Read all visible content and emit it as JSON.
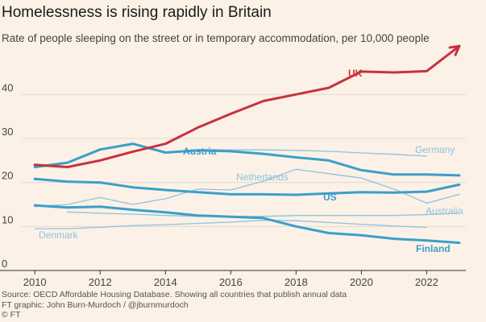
{
  "chart_data": {
    "type": "line",
    "title": "Homelessness is rising rapidly in Britain",
    "subtitle": "Rate of people sleeping on the street or in temporary accommodation, per 10,000 people",
    "xlabel": "",
    "ylabel": "",
    "xlim": [
      2009.6,
      2023.2
    ],
    "ylim": [
      0,
      45
    ],
    "x_ticks": [
      2010,
      2012,
      2014,
      2016,
      2018,
      2020,
      2022
    ],
    "y_ticks": [
      0,
      10,
      20,
      30,
      40
    ],
    "grid": true,
    "legend": "direct labels",
    "x": [
      2010,
      2011,
      2012,
      2013,
      2014,
      2015,
      2016,
      2017,
      2018,
      2019,
      2020,
      2021,
      2022,
      2023
    ],
    "series": [
      {
        "name": "UK",
        "label": "UK",
        "color": "#c8313f",
        "emphasis": true,
        "values": [
          24.0,
          23.5,
          25.0,
          27.0,
          28.8,
          32.5,
          35.6,
          38.5,
          40.0,
          41.5,
          45.2,
          45.0,
          45.3,
          51.0
        ]
      },
      {
        "name": "Austria",
        "label": "Austria",
        "color": "#3b9fc9",
        "emphasis": true,
        "values": [
          23.5,
          24.5,
          27.5,
          28.8,
          26.8,
          27.3,
          27.1,
          26.5,
          25.7,
          25.0,
          22.8,
          21.8,
          21.8,
          21.6
        ]
      },
      {
        "name": "Germany",
        "label": "Germany",
        "color": "#8fc3de",
        "emphasis": false,
        "values": [
          null,
          null,
          null,
          null,
          null,
          27.5,
          27.4,
          27.4,
          27.3,
          27.1,
          26.7,
          26.4,
          26.0,
          null
        ]
      },
      {
        "name": "US",
        "label": "US",
        "color": "#3b9fc9",
        "emphasis": true,
        "values": [
          20.8,
          20.2,
          20.0,
          18.9,
          18.3,
          17.8,
          17.3,
          17.3,
          17.2,
          17.5,
          17.8,
          17.7,
          17.9,
          19.5
        ]
      },
      {
        "name": "Netherlands",
        "label": "Netherlands",
        "color": "#8fc3de",
        "emphasis": false,
        "values": [
          14.5,
          15.0,
          16.6,
          15.0,
          16.3,
          18.5,
          18.3,
          20.3,
          23.0,
          22.0,
          21.0,
          18.5,
          15.3,
          17.3
        ]
      },
      {
        "name": "Australia",
        "label": "Australia",
        "color": "#8fc3de",
        "emphasis": false,
        "values": [
          null,
          13.3,
          13.0,
          12.8,
          12.5,
          12.3,
          12.3,
          12.3,
          12.5,
          12.5,
          12.5,
          12.5,
          12.7,
          13.0
        ]
      },
      {
        "name": "Denmark",
        "label": "Denmark",
        "color": "#8fc3de",
        "emphasis": false,
        "values": [
          9.5,
          9.5,
          9.8,
          10.2,
          10.4,
          10.7,
          11.0,
          11.4,
          11.3,
          10.9,
          10.5,
          10.1,
          9.8,
          null
        ]
      },
      {
        "name": "Finland",
        "label": "Finland",
        "color": "#3b9fc9",
        "emphasis": true,
        "values": [
          14.8,
          14.3,
          14.5,
          13.8,
          13.2,
          12.5,
          12.2,
          11.9,
          10.0,
          8.5,
          8.0,
          7.2,
          6.8,
          6.3
        ]
      }
    ],
    "annotations": [
      {
        "text": "UK",
        "series": "UK"
      },
      {
        "text": "Austria",
        "series": "Austria"
      },
      {
        "text": "Germany",
        "series": "Germany"
      },
      {
        "text": "Netherlands",
        "series": "Netherlands"
      },
      {
        "text": "US",
        "series": "US"
      },
      {
        "text": "Australia",
        "series": "Australia"
      },
      {
        "text": "Denmark",
        "series": "Denmark"
      },
      {
        "text": "Finland",
        "series": "Finland"
      }
    ]
  },
  "footer": {
    "source": "Source: OECD Affordable Housing Database. Showing all countries that publish annual data",
    "credit": "FT graphic: John Burn-Murdoch / @jburnmurdoch",
    "copyright": "© FT"
  },
  "colors": {
    "background": "#fbf1e6",
    "grid": "#e4dbd0",
    "axis": "#333333",
    "uk": "#c8313f",
    "highlight_blue": "#3b9fc9",
    "light_blue": "#8fc3de"
  }
}
